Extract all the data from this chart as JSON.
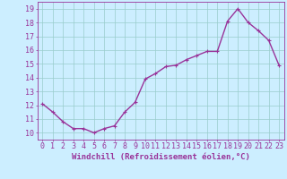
{
  "hours": [
    0,
    1,
    2,
    3,
    4,
    5,
    6,
    7,
    8,
    9,
    10,
    11,
    12,
    13,
    14,
    15,
    16,
    17,
    18,
    19,
    20,
    21,
    22,
    23
  ],
  "values": [
    12.1,
    11.5,
    10.8,
    10.3,
    10.3,
    10.0,
    10.3,
    10.5,
    11.5,
    12.2,
    13.9,
    14.3,
    14.8,
    14.9,
    15.3,
    15.6,
    15.9,
    15.9,
    18.1,
    19.0,
    18.0,
    17.4,
    16.7,
    14.9
  ],
  "line_color": "#993399",
  "marker": "+",
  "marker_size": 3,
  "bg_color": "#cceeff",
  "grid_color": "#99cccc",
  "xlabel": "Windchill (Refroidissement éolien,°C)",
  "xlim": [
    -0.5,
    23.5
  ],
  "ylim": [
    9.5,
    19.5
  ],
  "yticks": [
    10,
    11,
    12,
    13,
    14,
    15,
    16,
    17,
    18,
    19
  ],
  "xticks": [
    0,
    1,
    2,
    3,
    4,
    5,
    6,
    7,
    8,
    9,
    10,
    11,
    12,
    13,
    14,
    15,
    16,
    17,
    18,
    19,
    20,
    21,
    22,
    23
  ],
  "xlabel_fontsize": 6.5,
  "tick_fontsize": 6,
  "line_width": 1.0,
  "axis_color": "#993399"
}
